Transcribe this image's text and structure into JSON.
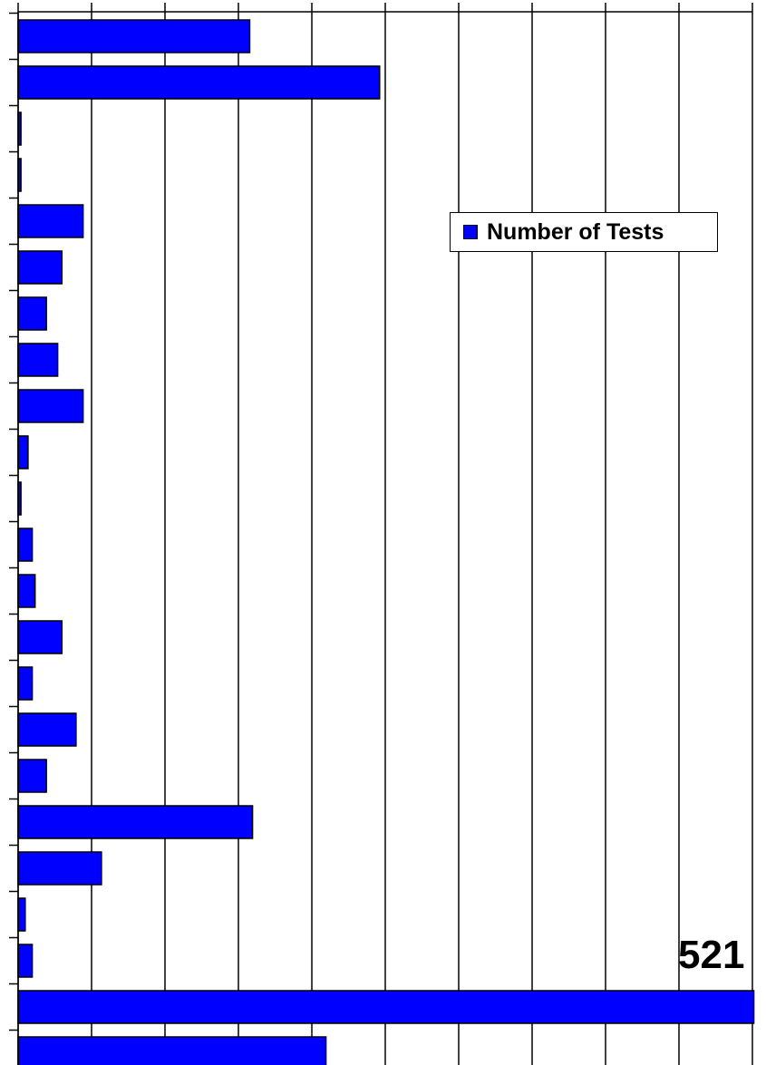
{
  "chart_data": {
    "type": "bar",
    "orientation": "horizontal",
    "series": [
      {
        "name": "Number of Tests",
        "color": "#0000ff",
        "values": [
          164,
          256,
          2,
          2,
          46,
          31,
          20,
          28,
          46,
          7,
          2,
          10,
          12,
          31,
          10,
          41,
          20,
          166,
          59,
          5,
          10,
          521,
          218
        ]
      }
    ],
    "xlim": [
      0,
      520
    ],
    "x_gridline_step": 52,
    "grid": true,
    "legend_position": "top-right",
    "data_labels": [
      {
        "bar_index": 21,
        "text": "521"
      }
    ]
  }
}
